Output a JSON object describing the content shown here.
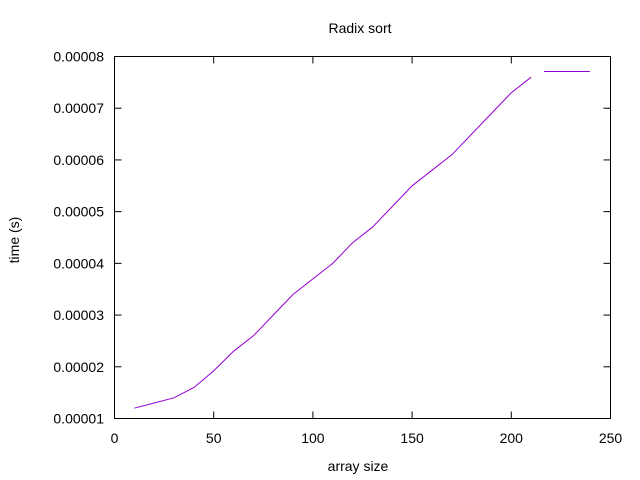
{
  "chart_data": {
    "type": "line",
    "title": "Radix sort",
    "xlabel": "array size",
    "ylabel": "time (s)",
    "xlim": [
      0,
      250
    ],
    "ylim": [
      1e-05,
      8e-05
    ],
    "x_ticks": [
      0,
      50,
      100,
      150,
      200,
      250
    ],
    "x_tick_labels": [
      "0",
      "50",
      "100",
      "150",
      "200",
      "250"
    ],
    "y_ticks": [
      1e-05,
      2e-05,
      3e-05,
      4e-05,
      5e-05,
      6e-05,
      7e-05,
      8e-05
    ],
    "y_tick_labels": [
      "0.00001",
      "0.00002",
      "0.00003",
      "0.00004",
      "0.00005",
      "0.00006",
      "0.00007",
      "0.00008"
    ],
    "grid": false,
    "legend": {
      "placement": "top-right",
      "entries": [
        {
          "label": "",
          "color": "#9400d3"
        }
      ]
    },
    "series": [
      {
        "color": "#9400d3",
        "x": [
          10,
          20,
          30,
          40,
          50,
          60,
          70,
          80,
          90,
          100,
          110,
          120,
          130,
          140,
          150,
          160,
          170,
          180,
          190,
          200,
          210
        ],
        "values": [
          1.2e-05,
          1.3e-05,
          1.4e-05,
          1.6e-05,
          1.92e-05,
          2.3e-05,
          2.6e-05,
          3e-05,
          3.4e-05,
          3.7e-05,
          4e-05,
          4.4e-05,
          4.7e-05,
          5.1e-05,
          5.5e-05,
          5.8e-05,
          6.1e-05,
          6.5e-05,
          6.9e-05,
          7.3e-05,
          7.6e-05
        ]
      }
    ]
  }
}
